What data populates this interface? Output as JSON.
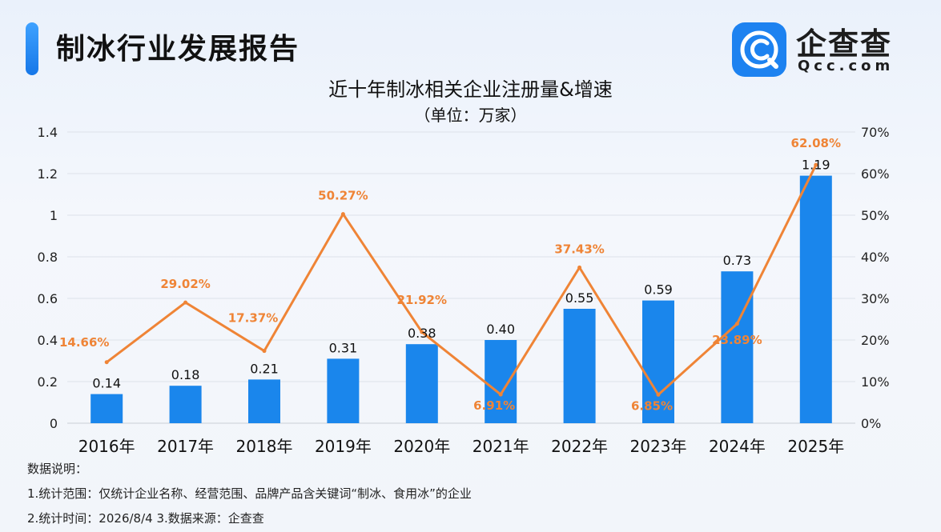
{
  "header": {
    "report_title": "制冰行业发展报告",
    "logo_name": "企查查",
    "logo_sub": "Qcc.com"
  },
  "chart_data": {
    "type": "bar",
    "title": "近十年制冰相关企业注册量&增速",
    "subtitle": "（单位：万家）",
    "categories": [
      "2016年",
      "2017年",
      "2018年",
      "2019年",
      "2020年",
      "2021年",
      "2022年",
      "2023年",
      "2024年",
      "2025年"
    ],
    "series": [
      {
        "type": "bar",
        "axis": "left",
        "color": "#1a86ec",
        "values": [
          0.14,
          0.18,
          0.21,
          0.31,
          0.38,
          0.4,
          0.55,
          0.59,
          0.73,
          1.19
        ],
        "labels": [
          "0.14",
          "0.18",
          "0.21",
          "0.31",
          "0.38",
          "0.40",
          "0.55",
          "0.59",
          "0.73",
          "1.19"
        ]
      },
      {
        "type": "line",
        "axis": "right",
        "color": "#ef8436",
        "values": [
          14.66,
          29.02,
          17.37,
          50.27,
          21.92,
          6.91,
          37.43,
          6.85,
          23.89,
          62.08
        ],
        "labels": [
          "14.66%",
          "29.02%",
          "17.37%",
          "50.27%",
          "21.92%",
          "6.91%",
          "37.43%",
          "6.85%",
          "23.89%",
          "62.08%"
        ]
      }
    ],
    "y_left": {
      "ylim": [
        0,
        1.4
      ],
      "ticks": [
        "0",
        "0.2",
        "0.4",
        "0.6",
        "0.8",
        "1",
        "1.2",
        "1.4"
      ]
    },
    "y_right": {
      "ylim": [
        0,
        70
      ],
      "ticks": [
        "0%",
        "10%",
        "20%",
        "30%",
        "40%",
        "50%",
        "60%",
        "70%"
      ]
    },
    "grid": true,
    "legend": "none"
  },
  "notes": {
    "heading": "数据说明：",
    "line1": "1.统计范围：仅统计企业名称、经营范围、品牌产品含关键词“制冰、食用冰”的企业",
    "line2": "2.统计时间：2026/8/4   3.数据来源：企查查"
  }
}
